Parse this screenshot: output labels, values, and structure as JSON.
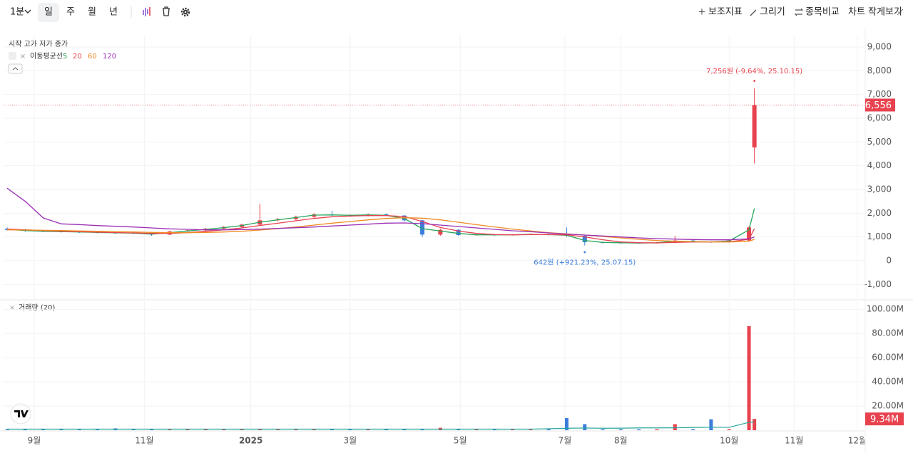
{
  "toolbar": {
    "interval": "1분",
    "periods": [
      "일",
      "주",
      "월",
      "년"
    ],
    "actions": [
      "보조지표",
      "그리기",
      "종목비교",
      "차트 작게보기"
    ]
  },
  "chart_data": [
    {
      "type": "candlestick",
      "ohlc_legend": "시작 고가 저가 종가",
      "ma_legend": "이동평균선",
      "up_color": "#e8424f",
      "down_color": "#3b7ddd",
      "x": [
        -15,
        -5,
        5,
        15,
        25,
        35,
        45,
        55,
        65,
        75,
        85,
        95,
        105,
        115,
        125,
        135,
        145,
        155,
        165,
        175,
        185,
        195,
        205,
        215,
        225,
        235,
        245,
        255,
        265,
        275,
        285,
        295,
        305,
        315,
        325,
        335,
        345,
        355,
        365,
        375,
        385,
        396,
        399
      ],
      "open": [
        1350,
        1300,
        1250,
        1230,
        1220,
        1200,
        1180,
        1170,
        1150,
        1100,
        1230,
        1280,
        1350,
        1420,
        1520,
        1700,
        1750,
        1850,
        1950,
        1920,
        1900,
        1950,
        1900,
        1700,
        1100,
        1300,
        1080,
        1100,
        1080,
        1100,
        1120,
        1100,
        1050,
        780,
        760,
        750,
        740,
        760,
        850,
        800,
        780,
        850,
        4770
      ],
      "high": [
        1400,
        1340,
        1290,
        1260,
        1250,
        1230,
        1210,
        1200,
        1170,
        1260,
        1300,
        1380,
        1460,
        1560,
        2400,
        1800,
        1900,
        2000,
        2100,
        1960,
        1990,
        1990,
        1920,
        1720,
        1350,
        1330,
        1130,
        1120,
        1120,
        1150,
        1150,
        1400,
        1070,
        800,
        780,
        770,
        790,
        1050,
        880,
        820,
        900,
        1450,
        7256
      ],
      "low": [
        1270,
        1220,
        1200,
        1190,
        1170,
        1150,
        1140,
        1120,
        1050,
        1080,
        1200,
        1250,
        1320,
        1400,
        1490,
        1650,
        1700,
        1800,
        1880,
        1850,
        1860,
        1880,
        1650,
        1000,
        1050,
        1050,
        1060,
        1050,
        1060,
        1080,
        1060,
        1000,
        642,
        720,
        720,
        710,
        720,
        740,
        760,
        750,
        760,
        820,
        4100
      ],
      "close": [
        1300,
        1250,
        1230,
        1220,
        1200,
        1180,
        1170,
        1150,
        1100,
        1230,
        1280,
        1350,
        1420,
        1520,
        1700,
        1750,
        1850,
        1950,
        1920,
        1900,
        1950,
        1900,
        1700,
        1100,
        1300,
        1080,
        1100,
        1080,
        1100,
        1120,
        1100,
        1050,
        780,
        760,
        750,
        740,
        760,
        850,
        800,
        780,
        850,
        1400,
        6556
      ],
      "value_labels": [
        null,
        null,
        null,
        null,
        null,
        null,
        null,
        null,
        null,
        null,
        null,
        null,
        null,
        null,
        null,
        null,
        null,
        null,
        null,
        null,
        null,
        null,
        null,
        null,
        null,
        null,
        null,
        null,
        null,
        null,
        null,
        null,
        null,
        null,
        null,
        null,
        null,
        null,
        null,
        null,
        null,
        null,
        "6,556"
      ],
      "series": [
        {
          "name": "5",
          "color": "#26a65b",
          "values": [
            1320,
            1270,
            1240,
            1225,
            1210,
            1190,
            1175,
            1160,
            1120,
            1180,
            1250,
            1320,
            1390,
            1480,
            1620,
            1720,
            1820,
            1920,
            1930,
            1910,
            1930,
            1910,
            1780,
            1350,
            1250,
            1150,
            1090,
            1090,
            1090,
            1110,
            1100,
            1070,
            850,
            770,
            755,
            745,
            755,
            820,
            810,
            790,
            830,
            1300,
            2200
          ]
        },
        {
          "name": "20",
          "color": "#e8424f",
          "values": [
            1330,
            1300,
            1270,
            1240,
            1220,
            1200,
            1185,
            1170,
            1150,
            1150,
            1180,
            1240,
            1300,
            1380,
            1480,
            1580,
            1680,
            1780,
            1850,
            1880,
            1900,
            1900,
            1860,
            1650,
            1400,
            1250,
            1150,
            1100,
            1090,
            1100,
            1100,
            1090,
            1000,
            880,
            790,
            760,
            750,
            770,
            790,
            790,
            800,
            900,
            1350
          ]
        },
        {
          "name": "60",
          "color": "#f08a24",
          "values": [
            1300,
            1290,
            1280,
            1270,
            1250,
            1240,
            1220,
            1210,
            1190,
            1180,
            1180,
            1190,
            1210,
            1240,
            1290,
            1350,
            1420,
            1500,
            1580,
            1650,
            1720,
            1780,
            1810,
            1790,
            1720,
            1620,
            1520,
            1420,
            1330,
            1250,
            1180,
            1130,
            1080,
            1020,
            960,
            900,
            850,
            820,
            800,
            790,
            790,
            820,
            900
          ]
        },
        {
          "name": "120",
          "color": "#9b30b5",
          "values": [
            3050,
            2500,
            1800,
            1550,
            1520,
            1480,
            1450,
            1420,
            1380,
            1340,
            1320,
            1300,
            1300,
            1310,
            1330,
            1360,
            1390,
            1420,
            1460,
            1500,
            1540,
            1580,
            1590,
            1560,
            1500,
            1440,
            1380,
            1320,
            1260,
            1220,
            1170,
            1120,
            1080,
            1040,
            1000,
            960,
            930,
            910,
            890,
            880,
            880,
            920,
            1000
          ]
        }
      ],
      "annotations": [
        {
          "text": "7,256원 (-9.64%, 25.10.15)",
          "at": "high",
          "color": "#e8424f"
        },
        {
          "text": "642원 (+921.23%, 25.07.15)",
          "at": "low",
          "color": "#3b7ddd"
        }
      ],
      "ylim": [
        -1620,
        9480
      ],
      "yticks": [
        {
          "value": 9000,
          "label": "9,000"
        },
        {
          "value": 8000,
          "label": "8,000"
        },
        {
          "value": 7000,
          "label": "7,000"
        },
        {
          "value": 6000,
          "label": "6,000"
        },
        {
          "value": 5000,
          "label": "5,000"
        },
        {
          "value": 4000,
          "label": "4,000"
        },
        {
          "value": 3000,
          "label": "3,000"
        },
        {
          "value": 2000,
          "label": "2,000"
        },
        {
          "value": 1000,
          "label": "1,000"
        },
        0,
        {
          "value": -1000,
          "label": "-1,000"
        }
      ],
      "grid": true
    },
    {
      "type": "bar",
      "legend": "거래량 (20)",
      "x": [
        -15,
        -5,
        5,
        15,
        25,
        35,
        45,
        55,
        65,
        75,
        85,
        95,
        105,
        115,
        125,
        135,
        145,
        155,
        165,
        175,
        185,
        195,
        205,
        215,
        225,
        235,
        245,
        255,
        265,
        275,
        285,
        295,
        305,
        315,
        325,
        335,
        345,
        355,
        365,
        375,
        385,
        396,
        399
      ],
      "values": [
        0.8,
        0.8,
        0.8,
        0.8,
        0.8,
        0.8,
        1.5,
        0.8,
        0.8,
        0.8,
        0.8,
        0.8,
        0.8,
        0.8,
        1.2,
        0.8,
        0.8,
        0.8,
        0.8,
        0.8,
        0.8,
        0.8,
        0.8,
        0.8,
        2,
        0.8,
        0.8,
        0.8,
        0.8,
        0.8,
        0.8,
        10,
        5,
        0.8,
        0.8,
        0.8,
        0.8,
        5,
        0.8,
        9,
        0.8,
        86,
        9.34
      ],
      "value_labels": [
        null,
        null,
        null,
        null,
        null,
        null,
        null,
        null,
        null,
        null,
        null,
        null,
        null,
        null,
        null,
        null,
        null,
        null,
        null,
        null,
        null,
        null,
        null,
        null,
        null,
        null,
        null,
        null,
        null,
        null,
        null,
        null,
        null,
        null,
        null,
        null,
        null,
        null,
        null,
        null,
        null,
        null,
        "9.34M"
      ],
      "ma_color": "#26a69a",
      "ma_values": [
        0.9,
        0.9,
        0.9,
        0.9,
        0.9,
        0.9,
        0.9,
        0.9,
        0.9,
        0.9,
        0.9,
        0.9,
        0.9,
        0.9,
        0.9,
        0.9,
        0.9,
        0.9,
        0.9,
        0.9,
        0.9,
        0.9,
        0.9,
        0.9,
        0.9,
        0.9,
        0.9,
        0.9,
        0.9,
        0.9,
        1.2,
        1.6,
        1.8,
        1.6,
        1.7,
        1.9,
        1.9,
        2.0,
        2.3,
        2.4,
        2.4,
        6.5,
        6.9
      ],
      "ylim": [
        0,
        106
      ],
      "yticks": [
        {
          "value": 100,
          "label": "100.00M"
        },
        {
          "value": 80,
          "label": "80.00M"
        },
        {
          "value": 60,
          "label": "60.00M"
        },
        {
          "value": 40,
          "label": "40.00M"
        },
        {
          "value": 20,
          "label": "20.00M"
        }
      ],
      "xlim": [
        -17,
        460
      ],
      "xticks": [
        {
          "value": 0,
          "label": "9월"
        },
        {
          "value": 61,
          "label": "11월"
        },
        {
          "value": 120,
          "label": "2025"
        },
        {
          "value": 175,
          "label": "3월"
        },
        {
          "value": 236,
          "label": "5월"
        },
        {
          "value": 294,
          "label": "7월"
        },
        {
          "value": 325,
          "label": "8월"
        },
        {
          "value": 385,
          "label": "10월"
        },
        {
          "value": 421,
          "label": "11월"
        },
        {
          "value": 456,
          "label": "12월"
        }
      ],
      "grid": true
    }
  ]
}
